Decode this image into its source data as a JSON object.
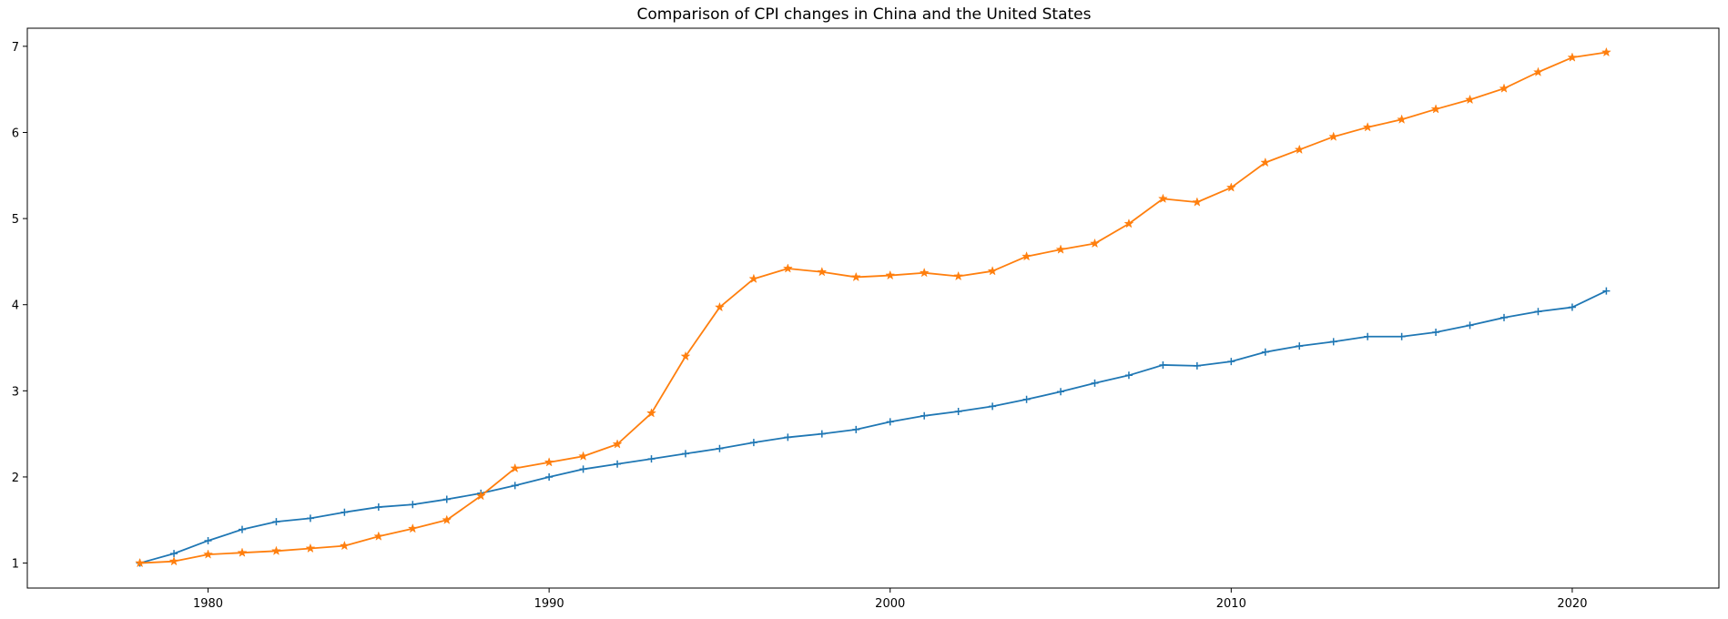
{
  "chart_data": {
    "type": "line",
    "title": "Comparison of CPI changes in China and the United States",
    "xlabel": "",
    "ylabel": "",
    "xlim": [
      1974.7,
      2024.3
    ],
    "ylim": [
      0.71,
      7.21
    ],
    "xticks": [
      1980,
      1990,
      2000,
      2010,
      2020
    ],
    "yticks": [
      1,
      2,
      3,
      4,
      5,
      6,
      7
    ],
    "grid": false,
    "legend": "none",
    "x": [
      1978,
      1979,
      1980,
      1981,
      1982,
      1983,
      1984,
      1985,
      1986,
      1987,
      1988,
      1989,
      1990,
      1991,
      1992,
      1993,
      1994,
      1995,
      1996,
      1997,
      1998,
      1999,
      2000,
      2001,
      2002,
      2003,
      2004,
      2005,
      2006,
      2007,
      2008,
      2009,
      2010,
      2011,
      2012,
      2013,
      2014,
      2015,
      2016,
      2017,
      2018,
      2019,
      2020,
      2021
    ],
    "series": [
      {
        "color": "#1f77b4",
        "marker": "plus",
        "values": [
          1.0,
          1.11,
          1.26,
          1.39,
          1.48,
          1.52,
          1.59,
          1.65,
          1.68,
          1.74,
          1.81,
          1.9,
          2.0,
          2.09,
          2.15,
          2.21,
          2.27,
          2.33,
          2.4,
          2.46,
          2.5,
          2.55,
          2.64,
          2.71,
          2.76,
          2.82,
          2.9,
          2.99,
          3.09,
          3.18,
          3.3,
          3.29,
          3.34,
          3.45,
          3.52,
          3.57,
          3.63,
          3.63,
          3.68,
          3.76,
          3.85,
          3.92,
          3.97,
          4.16
        ]
      },
      {
        "color": "#ff7f0e",
        "marker": "star",
        "values": [
          1.0,
          1.02,
          1.1,
          1.12,
          1.14,
          1.17,
          1.2,
          1.31,
          1.4,
          1.5,
          1.78,
          2.1,
          2.17,
          2.24,
          2.38,
          2.74,
          3.4,
          3.97,
          4.3,
          4.42,
          4.38,
          4.32,
          4.34,
          4.37,
          4.33,
          4.39,
          4.56,
          4.64,
          4.71,
          4.94,
          5.23,
          5.19,
          5.36,
          5.65,
          5.8,
          5.95,
          6.06,
          6.15,
          6.27,
          6.38,
          6.51,
          6.7,
          6.87,
          6.93
        ]
      }
    ]
  }
}
